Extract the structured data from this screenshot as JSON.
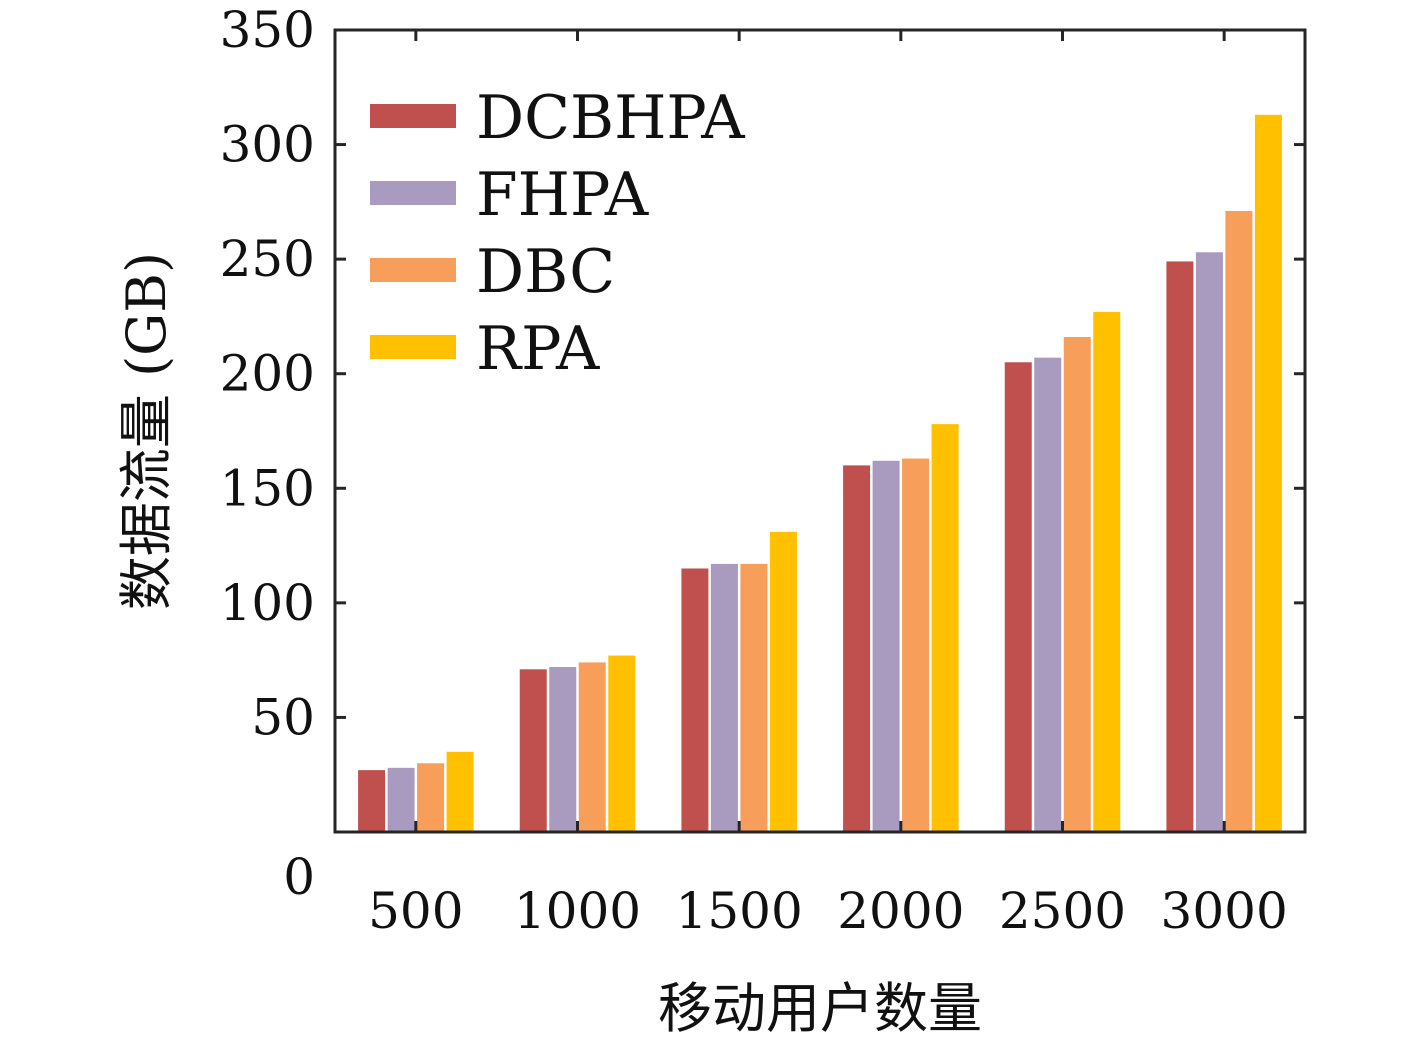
{
  "chart_data": {
    "type": "bar",
    "title": "",
    "xlabel": "移动用户数量",
    "ylabel": "数据流量 (GB)",
    "categories": [
      "500",
      "1000",
      "1500",
      "2000",
      "2500",
      "3000"
    ],
    "series": [
      {
        "name": "DCBHPA",
        "color": "#c0504d",
        "values": [
          27,
          71,
          115,
          160,
          205,
          249
        ]
      },
      {
        "name": "FHPA",
        "color": "#a99bc0",
        "values": [
          28,
          72,
          117,
          162,
          207,
          253
        ]
      },
      {
        "name": "DBC",
        "color": "#f79e5a",
        "values": [
          30,
          74,
          117,
          163,
          216,
          271
        ]
      },
      {
        "name": "RPA",
        "color": "#ffc000",
        "values": [
          35,
          77,
          131,
          178,
          227,
          313
        ]
      }
    ],
    "ylim": [
      0,
      350
    ],
    "yticks": [
      "0",
      "50",
      "100",
      "150",
      "200",
      "250",
      "300",
      "350"
    ],
    "ytick_values": [
      0,
      50,
      100,
      150,
      200,
      250,
      300,
      350
    ],
    "grid": false,
    "legend_position": "top-left"
  }
}
